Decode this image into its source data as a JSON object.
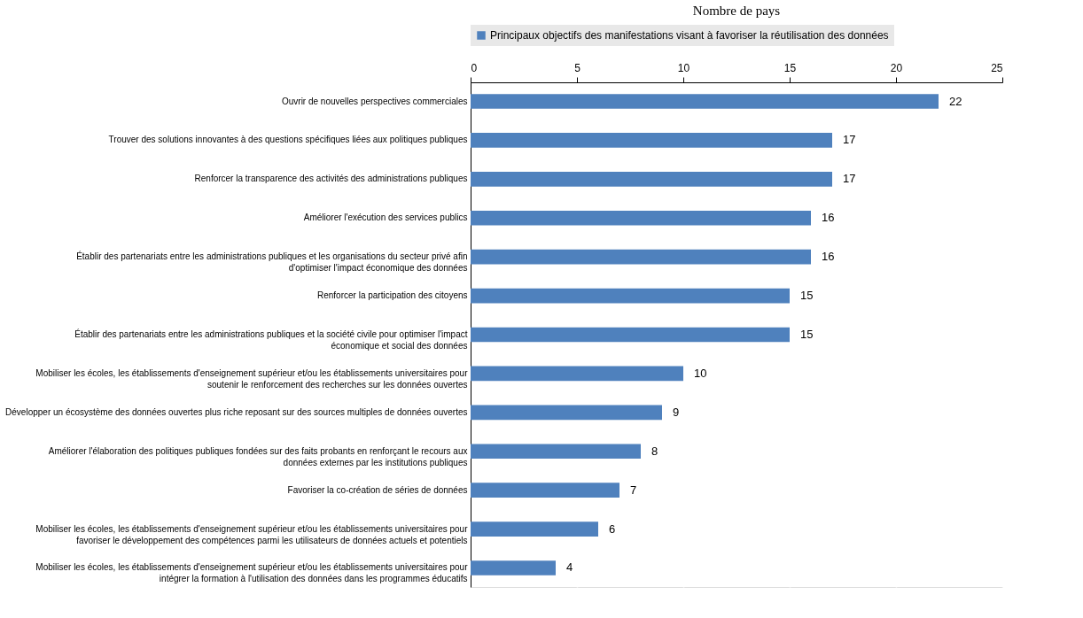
{
  "chart_data": {
    "type": "bar",
    "orientation": "horizontal",
    "title": "Nombre de pays",
    "categories": [
      "Ouvrir de nouvelles perspectives commerciales",
      "Trouver des solutions innovantes à des questions spécifiques liées aux politiques publiques",
      "Renforcer la transparence des activités des administrations publiques",
      "Améliorer l'exécution des services publics",
      "Établir des partenariats entre les administrations publiques et les organisations du secteur privé afin d'optimiser l'impact économique des données",
      "Renforcer la participation des citoyens",
      "Établir des partenariats entre les administrations publiques et la société civile pour optimiser l'impact économique et social des données",
      "Mobiliser les écoles, les établissements d'enseignement supérieur et/ou les établissements universitaires pour soutenir le renforcement des recherches sur les données ouvertes",
      "Développer un écosystème des données ouvertes plus riche reposant sur des sources multiples de données ouvertes",
      "Améliorer l'élaboration des politiques publiques fondées sur des faits probants en renforçant le recours aux données externes par les institutions publiques",
      "Favoriser la co-création de séries de données",
      "Mobiliser les écoles, les établissements d'enseignement supérieur et/ou les établissements universitaires pour favoriser le développement des compétences parmi les utilisateurs de données actuels et potentiels",
      "Mobiliser les écoles, les établissements d'enseignement supérieur et/ou les établissements universitaires pour intégrer la formation à l'utilisation des données dans les programmes éducatifs"
    ],
    "series": [
      {
        "name": "Principaux objectifs des manifestations visant à favoriser la réutilisation des données",
        "color": "#4f81bd",
        "values": [
          22,
          17,
          17,
          16,
          16,
          15,
          15,
          10,
          9,
          8,
          7,
          6,
          4
        ]
      }
    ],
    "xlim": [
      0,
      25
    ],
    "xticks": [
      0,
      5,
      10,
      15,
      20,
      25
    ],
    "grid": "x",
    "legend": "top",
    "data_labels": true
  }
}
